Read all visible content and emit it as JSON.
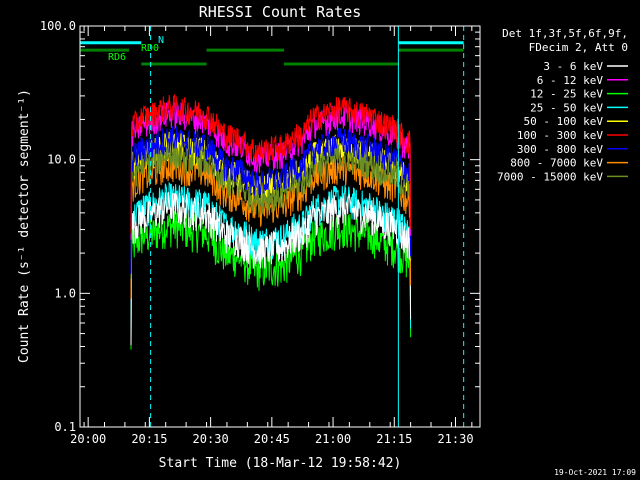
{
  "chart_data": {
    "type": "line",
    "title": "RHESSI Count Rates",
    "xlabel": "Start Time (18-Mar-12 19:58:42)",
    "ylabel": "Count Rate (s⁻¹ detector segment⁻¹)",
    "yscale": "log",
    "ylim": [
      0.1,
      100
    ],
    "xlim_minutes": [
      -2,
      96
    ],
    "x_tick_labels": [
      "20:00",
      "20:15",
      "20:30",
      "20:45",
      "21:00",
      "21:15",
      "21:30"
    ],
    "x_tick_minutes": [
      0,
      15,
      30,
      45,
      60,
      75,
      90
    ],
    "y_tick_labels": [
      "0.1",
      "1.0",
      "10.0",
      "100.0"
    ],
    "y_tick_values": [
      0.1,
      1,
      10,
      100
    ],
    "legend_header": [
      "Det 1f,3f,5f,6f,9f,",
      "FDecim 2, Att 0"
    ],
    "legend_position": "right",
    "footer": "19-Oct-2021 17:09",
    "series": [
      {
        "name": "3 - 6 keV",
        "color": "#ffffff",
        "base": 4.5
      },
      {
        "name": "6 - 12 keV",
        "color": "#ff00ff",
        "base": 22
      },
      {
        "name": "12 - 25 keV",
        "color": "#00ff00",
        "base": 3.2
      },
      {
        "name": "25 - 50 keV",
        "color": "#00ffff",
        "base": 5.2
      },
      {
        "name": "50 - 100 keV",
        "color": "#ffff00",
        "base": 13
      },
      {
        "name": "100 - 300 keV",
        "color": "#ff0000",
        "base": 25
      },
      {
        "name": "300 - 800 keV",
        "color": "#0000ff",
        "base": 14.5
      },
      {
        "name": "800 - 7000 keV",
        "color": "#ff8c00",
        "base": 9
      },
      {
        "name": "7000 - 15000 keV",
        "color": "#6b8e23",
        "base": 11
      }
    ],
    "data_start_minute": 10.5,
    "data_end_minute": 79,
    "profile_points_minutes": [
      10.5,
      14,
      20,
      27,
      35,
      42,
      47,
      52,
      56,
      62,
      68,
      74,
      79
    ],
    "profile_relative": [
      0.72,
      0.85,
      1.0,
      0.92,
      0.6,
      0.47,
      0.5,
      0.62,
      0.85,
      0.97,
      0.88,
      0.72,
      0.55
    ],
    "flags": {
      "N_label": "N",
      "RD0_label": "RD0",
      "RD6_label": "RD6"
    },
    "bars": [
      {
        "color": "#00ffff",
        "y_value": 75,
        "start": -2,
        "end": 13
      },
      {
        "color": "#00ffff",
        "y_value": 75,
        "start": 76,
        "end": 92
      },
      {
        "color": "#008000",
        "y_value": 66,
        "start": -2,
        "end": 10
      },
      {
        "color": "#008000",
        "y_value": 66,
        "start": 29,
        "end": 48
      },
      {
        "color": "#008000",
        "y_value": 66,
        "start": 76,
        "end": 92
      },
      {
        "color": "#008000",
        "y_value": 52,
        "start": 13,
        "end": 29
      },
      {
        "color": "#008000",
        "y_value": 52,
        "start": 48,
        "end": 76
      }
    ],
    "vlines": [
      {
        "minute": -2,
        "style": "solid"
      },
      {
        "minute": 15.3,
        "style": "dashed"
      },
      {
        "minute": 76,
        "style": "solid"
      },
      {
        "minute": 92,
        "style": "dashed"
      }
    ]
  }
}
